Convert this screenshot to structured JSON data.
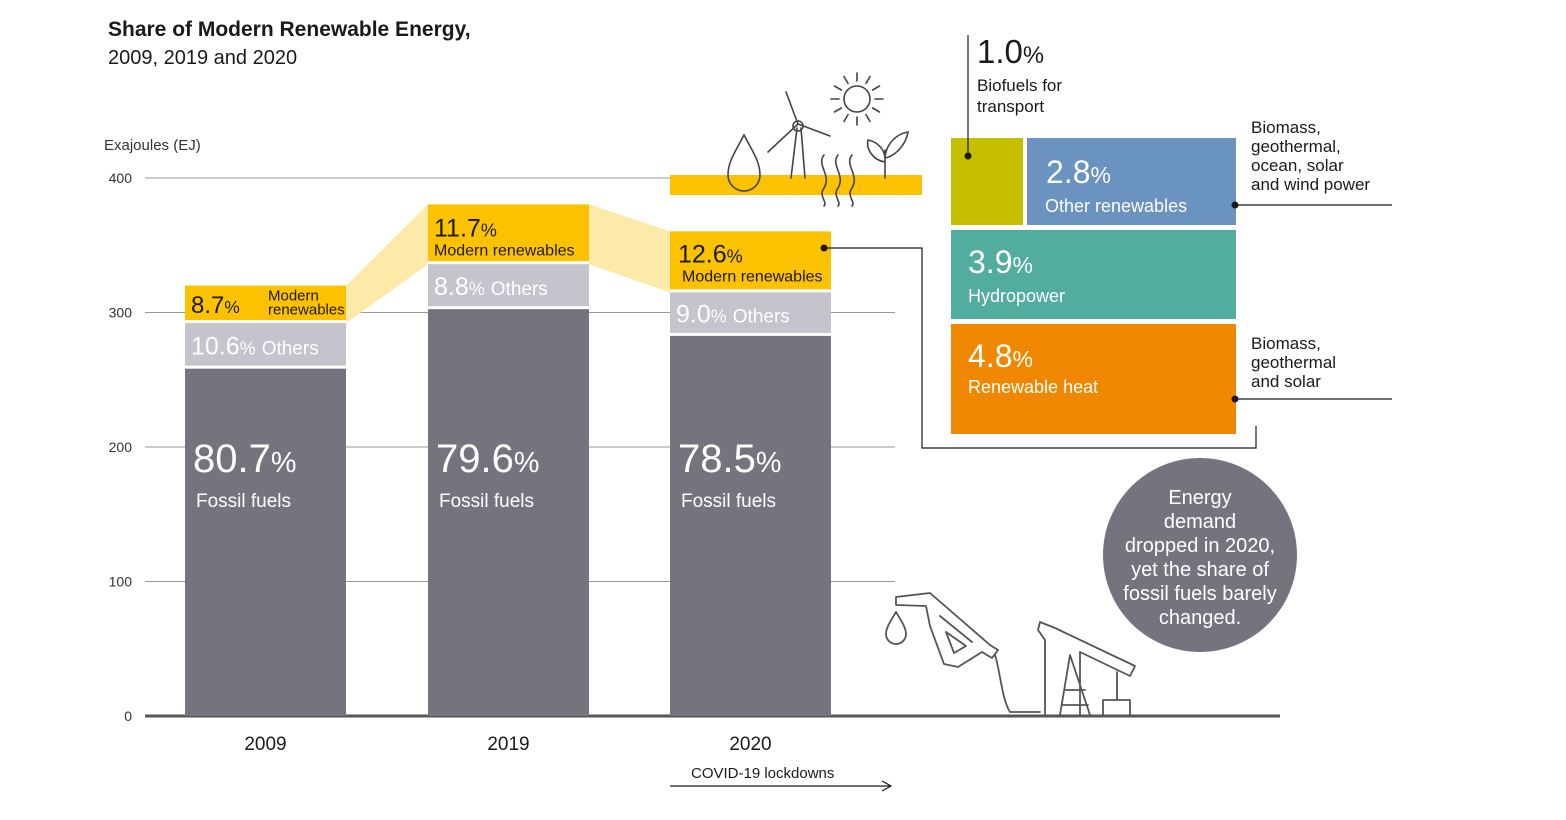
{
  "title": "Share of Modern Renewable Energy,",
  "subtitle": "2009, 2019 and 2020",
  "colors": {
    "fossil": "#75737d",
    "others": "#c5c3cb",
    "modern": "#fcc200",
    "modern_light": "#fde9a8",
    "biofuels": "#c5bf00",
    "other_renewables": "#6a93bf",
    "hydropower": "#52ad9f",
    "renewable_heat": "#f08700",
    "axis": "#555555",
    "note_circle": "#75737d"
  },
  "chart_data": {
    "type": "bar",
    "stacked": true,
    "ylabel": "Exajoules (EJ)",
    "ylim": [
      0,
      400
    ],
    "yticks": [
      0,
      100,
      200,
      300,
      400
    ],
    "categories": [
      "2009",
      "2019",
      "2020"
    ],
    "totals": [
      320,
      380,
      360
    ],
    "series": [
      {
        "key": "fossil",
        "name": "Fossil fuels",
        "shares": [
          80.7,
          79.6,
          78.5
        ]
      },
      {
        "key": "others",
        "name": "Others",
        "shares": [
          10.6,
          8.8,
          9.0
        ]
      },
      {
        "key": "modern",
        "name": "Modern renewables",
        "shares": [
          8.7,
          11.7,
          12.6
        ]
      }
    ],
    "labels": {
      "fossil": [
        "80.7",
        "79.6",
        "78.5"
      ],
      "others": [
        "10.6",
        "8.8",
        "9.0"
      ],
      "modern": [
        "8.7",
        "11.7",
        "12.6"
      ],
      "pct": "%",
      "others_text": "Others",
      "fossil_text": "Fossil fuels",
      "modern_text": "Modern renewables",
      "modern_text_2009_line1": "Modern",
      "modern_text_2009_line2": "renewables"
    },
    "breakdown_2020": [
      {
        "key": "biofuels",
        "value": "1.0",
        "line1": "Biofuels for",
        "line2": "transport"
      },
      {
        "key": "other_renewables",
        "value": "2.8",
        "label": "Other renewables",
        "note": [
          "Biomass,",
          "geothermal,",
          "ocean, solar",
          "and wind power"
        ]
      },
      {
        "key": "hydropower",
        "value": "3.9",
        "label": "Hydropower"
      },
      {
        "key": "renewable_heat",
        "value": "4.8",
        "label": "Renewable heat",
        "note": [
          "Biomass,",
          "geothermal",
          "and solar"
        ]
      }
    ],
    "annotation": {
      "covid": "COVID-19 lockdowns",
      "note": [
        "Energy",
        "demand",
        "dropped in 2020,",
        "yet the share of",
        "fossil fuels barely",
        "changed."
      ]
    }
  }
}
